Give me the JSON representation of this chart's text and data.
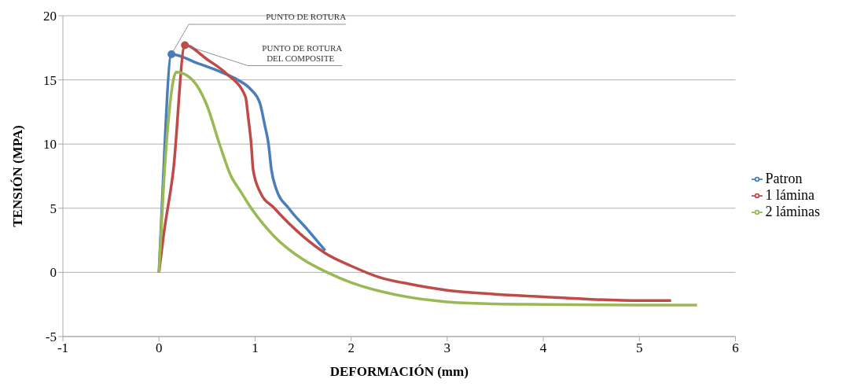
{
  "chart_data": {
    "type": "line",
    "xlabel": "DEFORMACIÓN (mm)",
    "ylabel": "TENSIÓN (MPA)",
    "xlim": [
      -1,
      6
    ],
    "xticks": [
      -1,
      0,
      1,
      2,
      3,
      4,
      5,
      6
    ],
    "ylim": [
      -5,
      20
    ],
    "yticks": [
      -5,
      0,
      5,
      10,
      15,
      20
    ],
    "grid": "y",
    "legend": "right",
    "marker": "none",
    "line_style": "solid",
    "annotations": [
      {
        "text": "PUNTO DE ROTURA",
        "x": 0.13,
        "y": 17
      },
      {
        "text": "PUNTO DE ROTURA\nDEL COMPOSITE",
        "x": 0.27,
        "y": 17.7
      }
    ],
    "series": [
      {
        "name": "Patron",
        "color": "#4a7ebb",
        "x": [
          0,
          0.03,
          0.13,
          0.4,
          0.65,
          0.82,
          0.95,
          1.05,
          1.1,
          1.14,
          1.17,
          1.22,
          1.35,
          1.55,
          1.73
        ],
        "values": [
          0,
          5,
          17,
          16.3,
          15.6,
          15,
          14.3,
          13.2,
          11.5,
          10,
          8,
          6.5,
          5,
          3.3,
          1.7
        ]
      },
      {
        "name": "1 lámina",
        "color": "#be4b48",
        "x": [
          0,
          0.05,
          0.15,
          0.27,
          0.5,
          0.7,
          0.9,
          0.93,
          0.96,
          0.98,
          1.05,
          1.2,
          1.5,
          1.73,
          2,
          2.3,
          2.6,
          3,
          3.5,
          4,
          4.5,
          5,
          5.33
        ],
        "values": [
          0,
          3,
          8,
          17.7,
          16.6,
          15.5,
          13.7,
          12,
          10,
          8,
          6.3,
          5,
          2.8,
          1.5,
          0.5,
          -0.4,
          -0.9,
          -1.4,
          -1.7,
          -1.9,
          -2.1,
          -2.2,
          -2.2
        ]
      },
      {
        "name": "2 láminas",
        "color": "#98b954",
        "x": [
          0,
          0.05,
          0.1,
          0.18,
          0.3,
          0.4,
          0.5,
          0.63,
          0.75,
          0.85,
          0.96,
          1.2,
          1.5,
          1.75,
          2,
          2.5,
          3,
          3.5,
          4,
          5,
          5.6
        ],
        "values": [
          0,
          7,
          12,
          15.6,
          15.3,
          14.5,
          13,
          10,
          7.5,
          6.3,
          5,
          2.8,
          1,
          0,
          -0.8,
          -1.8,
          -2.3,
          -2.45,
          -2.5,
          -2.55,
          -2.55
        ]
      }
    ]
  }
}
